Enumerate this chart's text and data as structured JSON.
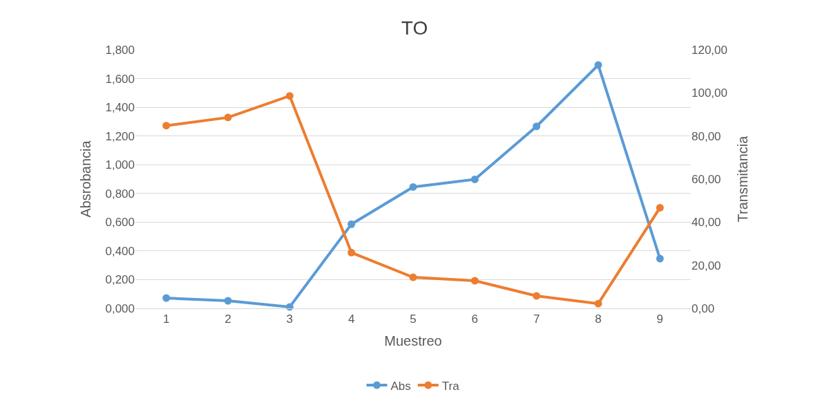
{
  "chart_data": {
    "type": "line",
    "title": "TO",
    "xlabel": "Muestreo",
    "ylabel": "Absrobancia",
    "y2label": "Transmitancia",
    "categories": [
      "1",
      "2",
      "3",
      "4",
      "5",
      "6",
      "7",
      "8",
      "9"
    ],
    "series": [
      {
        "name": "Abs",
        "color": "#5b9bd5",
        "values": [
          0.072,
          0.053,
          0.01,
          0.586,
          0.845,
          0.898,
          1.267,
          1.694,
          0.346
        ]
      },
      {
        "name": "Tra",
        "color": "#ed7d31",
        "axis": "y2",
        "values": [
          84.8,
          88.6,
          98.6,
          25.9,
          14.4,
          12.8,
          5.8,
          2.2,
          46.7
        ]
      }
    ],
    "ylim": [
      0,
      1.8
    ],
    "yticks": [
      {
        "value": 0,
        "label": "0,000"
      },
      {
        "value": 0.2,
        "label": "0,200"
      },
      {
        "value": 0.4,
        "label": "0,400"
      },
      {
        "value": 0.6,
        "label": "0,600"
      },
      {
        "value": 0.8,
        "label": "0,800"
      },
      {
        "value": 1.0,
        "label": "1,000"
      },
      {
        "value": 1.2,
        "label": "1,200"
      },
      {
        "value": 1.4,
        "label": "1,400"
      },
      {
        "value": 1.6,
        "label": "1,600"
      },
      {
        "value": 1.8,
        "label": "1,800"
      }
    ],
    "y2lim": [
      0,
      120
    ],
    "y2ticks": [
      {
        "value": 0,
        "label": "0,00"
      },
      {
        "value": 20,
        "label": "20,00"
      },
      {
        "value": 40,
        "label": "40,00"
      },
      {
        "value": 60,
        "label": "60,00"
      },
      {
        "value": 80,
        "label": "80,00"
      },
      {
        "value": 100,
        "label": "100,00"
      },
      {
        "value": 120,
        "label": "120,00"
      }
    ],
    "grid": "y",
    "legend": "bottom",
    "marker": "circle",
    "line_style": "solid"
  }
}
